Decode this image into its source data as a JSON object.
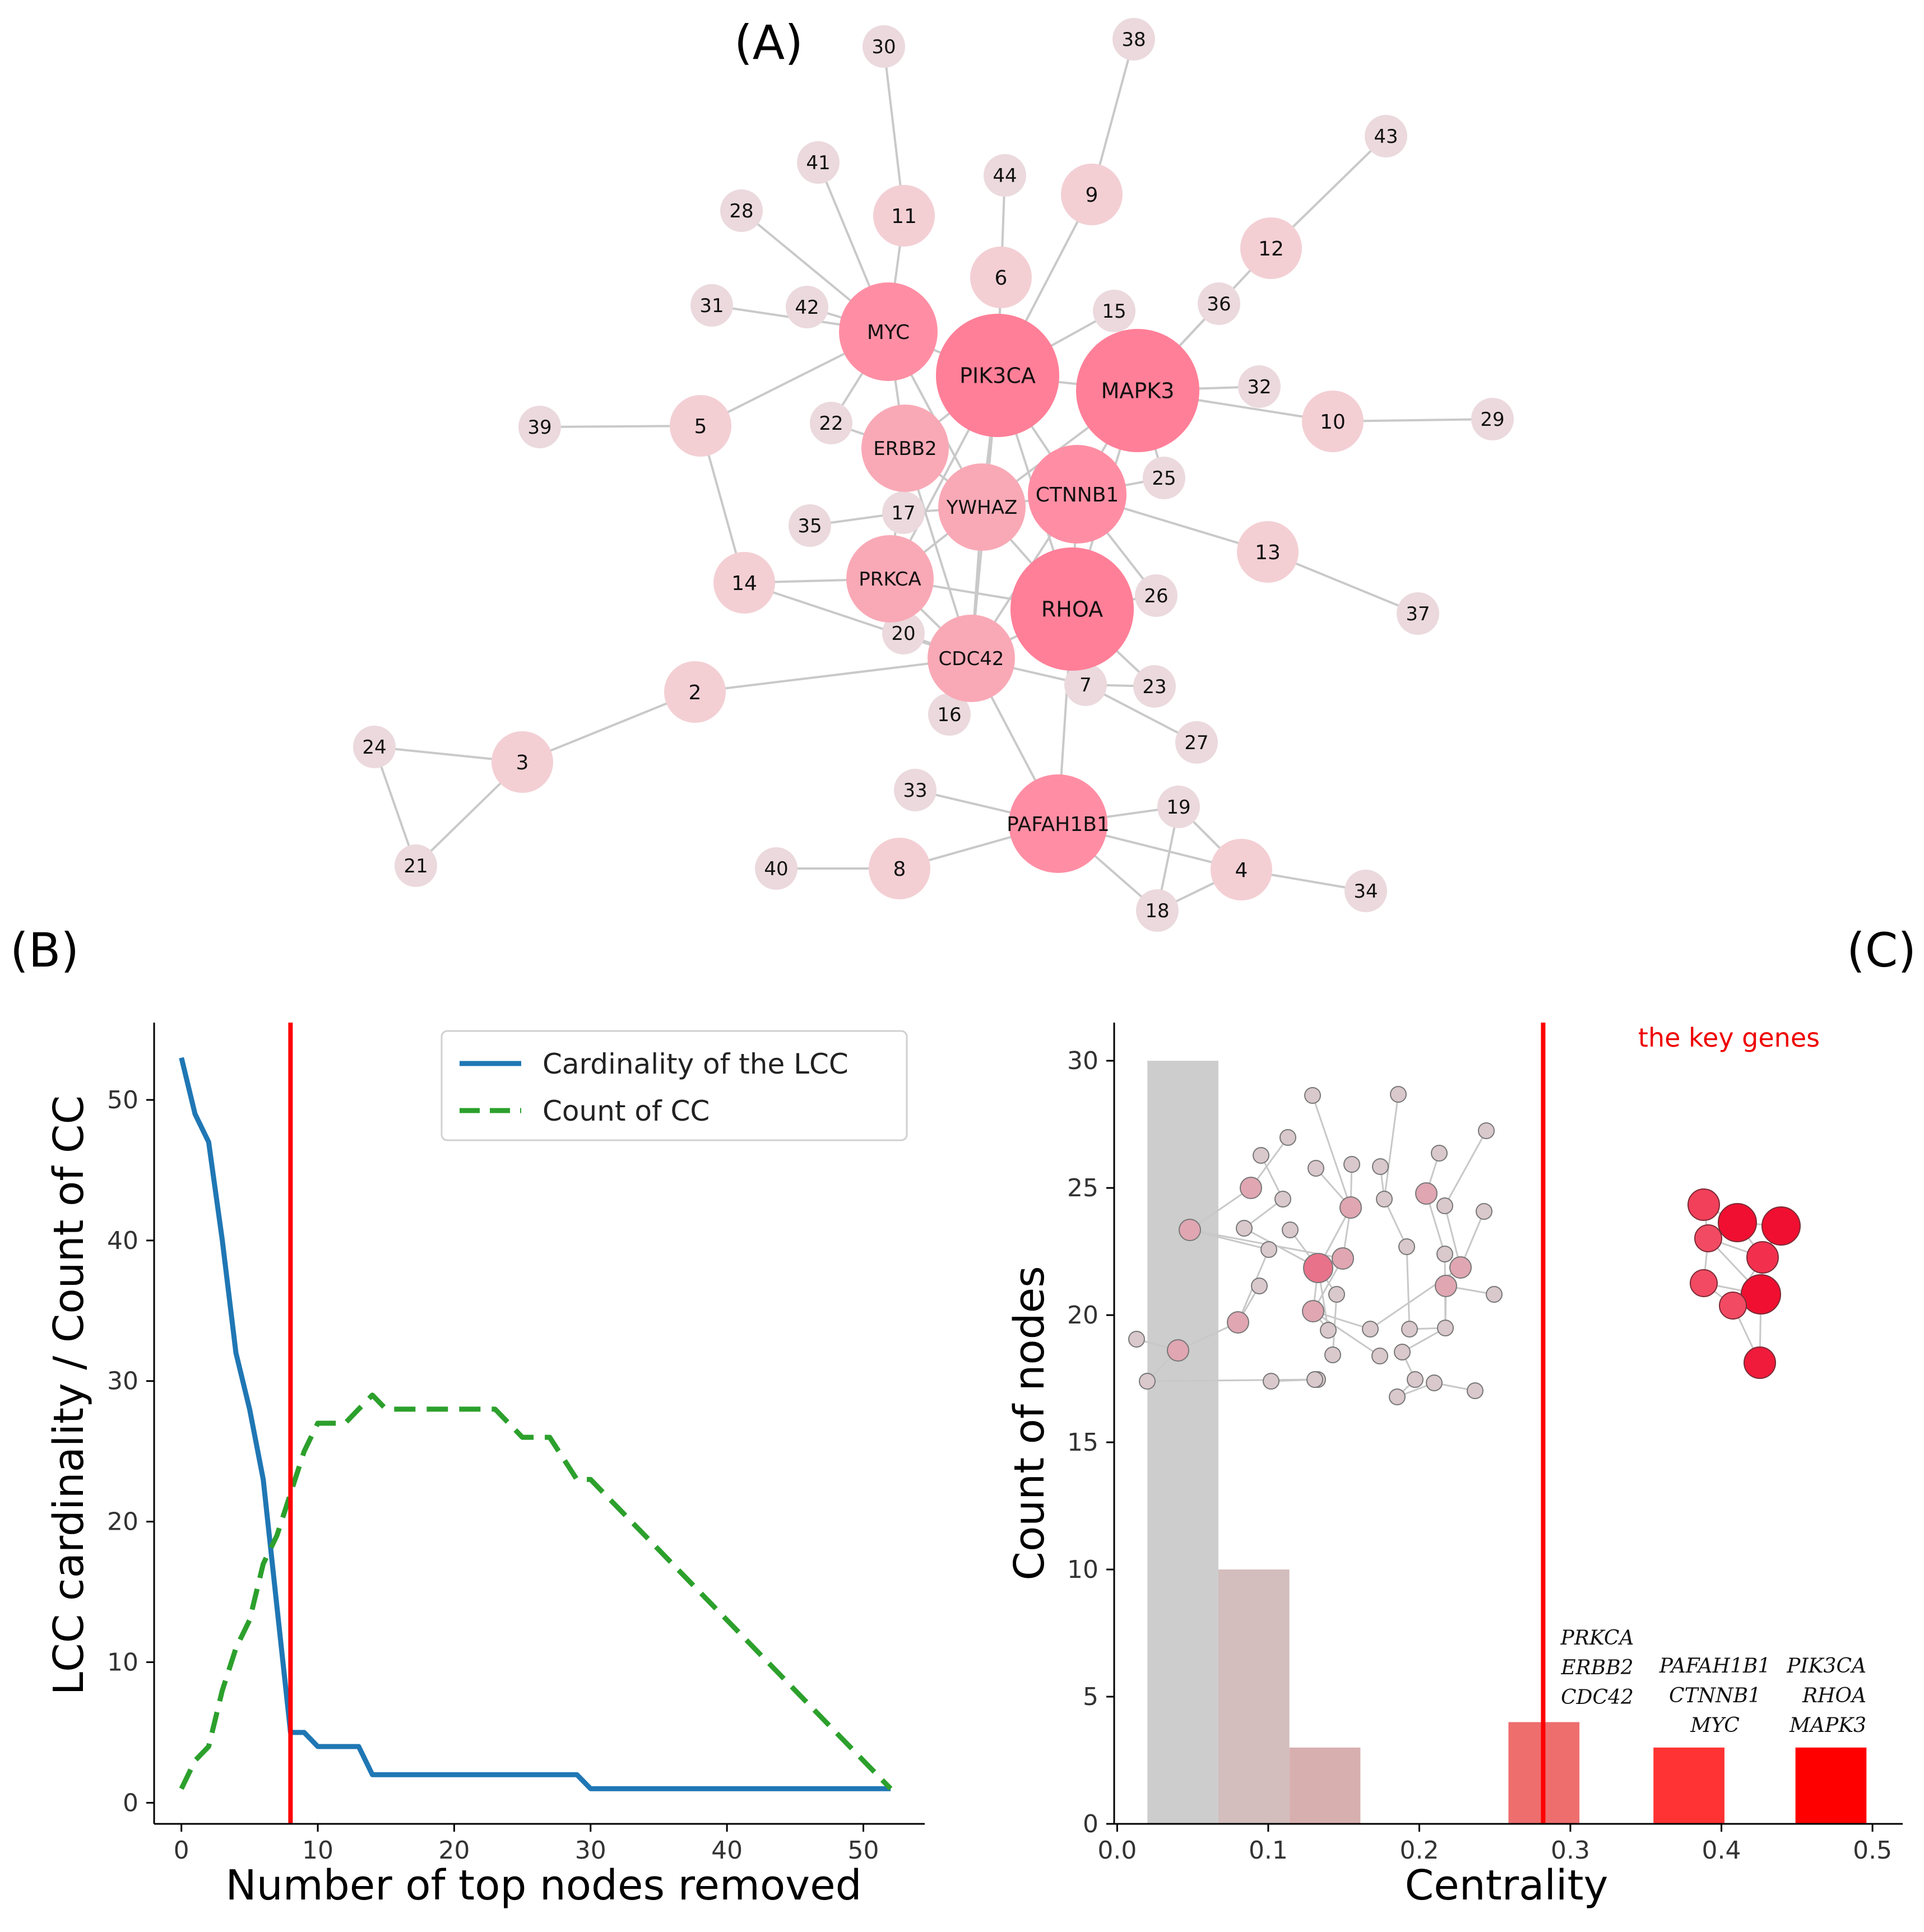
{
  "labels": {
    "panel_a": "(A)",
    "panel_b": "(B)",
    "panel_c": "(C)"
  },
  "chart_data": [
    {
      "type": "network",
      "panel": "A",
      "nodes": [
        {
          "id": "PIK3CA",
          "tier": "hub"
        },
        {
          "id": "MAPK3",
          "tier": "hub"
        },
        {
          "id": "RHOA",
          "tier": "hub"
        },
        {
          "id": "PAFAH1B1",
          "tier": "major"
        },
        {
          "id": "CTNNB1",
          "tier": "major"
        },
        {
          "id": "MYC",
          "tier": "major"
        },
        {
          "id": "ERBB2",
          "tier": "mid"
        },
        {
          "id": "YWHAZ",
          "tier": "mid"
        },
        {
          "id": "PRKCA",
          "tier": "mid"
        },
        {
          "id": "CDC42",
          "tier": "mid"
        },
        {
          "id": "2",
          "tier": "minor"
        },
        {
          "id": "3",
          "tier": "minor"
        },
        {
          "id": "4",
          "tier": "minor"
        },
        {
          "id": "5",
          "tier": "minor"
        },
        {
          "id": "6",
          "tier": "minor"
        },
        {
          "id": "8",
          "tier": "minor"
        },
        {
          "id": "9",
          "tier": "minor"
        },
        {
          "id": "10",
          "tier": "minor"
        },
        {
          "id": "11",
          "tier": "minor"
        },
        {
          "id": "12",
          "tier": "minor"
        },
        {
          "id": "13",
          "tier": "minor"
        },
        {
          "id": "14",
          "tier": "minor"
        },
        {
          "id": "7",
          "tier": "leaf"
        },
        {
          "id": "15",
          "tier": "leaf"
        },
        {
          "id": "16",
          "tier": "leaf"
        },
        {
          "id": "17",
          "tier": "leaf"
        },
        {
          "id": "18",
          "tier": "leaf"
        },
        {
          "id": "19",
          "tier": "leaf"
        },
        {
          "id": "20",
          "tier": "leaf"
        },
        {
          "id": "21",
          "tier": "leaf"
        },
        {
          "id": "22",
          "tier": "leaf"
        },
        {
          "id": "23",
          "tier": "leaf"
        },
        {
          "id": "24",
          "tier": "leaf"
        },
        {
          "id": "25",
          "tier": "leaf"
        },
        {
          "id": "26",
          "tier": "leaf"
        },
        {
          "id": "27",
          "tier": "leaf"
        },
        {
          "id": "28",
          "tier": "leaf"
        },
        {
          "id": "29",
          "tier": "leaf"
        },
        {
          "id": "30",
          "tier": "leaf"
        },
        {
          "id": "31",
          "tier": "leaf"
        },
        {
          "id": "32",
          "tier": "leaf"
        },
        {
          "id": "33",
          "tier": "leaf"
        },
        {
          "id": "34",
          "tier": "leaf"
        },
        {
          "id": "35",
          "tier": "leaf"
        },
        {
          "id": "36",
          "tier": "leaf"
        },
        {
          "id": "37",
          "tier": "leaf"
        },
        {
          "id": "38",
          "tier": "leaf"
        },
        {
          "id": "39",
          "tier": "leaf"
        },
        {
          "id": "40",
          "tier": "leaf"
        },
        {
          "id": "41",
          "tier": "leaf"
        },
        {
          "id": "42",
          "tier": "leaf"
        },
        {
          "id": "43",
          "tier": "leaf"
        },
        {
          "id": "44",
          "tier": "leaf"
        }
      ],
      "edges": [
        [
          "30",
          "11"
        ],
        [
          "11",
          "MYC"
        ],
        [
          "41",
          "MYC"
        ],
        [
          "28",
          "MYC"
        ],
        [
          "31",
          "MYC"
        ],
        [
          "42",
          "MYC"
        ],
        [
          "MYC",
          "ERBB2"
        ],
        [
          "MYC",
          "PIK3CA"
        ],
        [
          "MYC",
          "5"
        ],
        [
          "MYC",
          "YWHAZ"
        ],
        [
          "MYC",
          "22"
        ],
        [
          "22",
          "ERBB2"
        ],
        [
          "44",
          "PIK3CA"
        ],
        [
          "6",
          "PIK3CA"
        ],
        [
          "9",
          "PIK3CA"
        ],
        [
          "38",
          "9"
        ],
        [
          "15",
          "PIK3CA"
        ],
        [
          "PIK3CA",
          "MAPK3"
        ],
        [
          "PIK3CA",
          "ERBB2"
        ],
        [
          "PIK3CA",
          "YWHAZ"
        ],
        [
          "PIK3CA",
          "CTNNB1"
        ],
        [
          "PIK3CA",
          "RHOA"
        ],
        [
          "PIK3CA",
          "CDC42"
        ],
        [
          "PIK3CA",
          "PRKCA"
        ],
        [
          "43",
          "12"
        ],
        [
          "12",
          "MAPK3"
        ],
        [
          "36",
          "MAPK3"
        ],
        [
          "32",
          "MAPK3"
        ],
        [
          "MAPK3",
          "10"
        ],
        [
          "10",
          "29"
        ],
        [
          "MAPK3",
          "CTNNB1"
        ],
        [
          "MAPK3",
          "YWHAZ"
        ],
        [
          "MAPK3",
          "25"
        ],
        [
          "MAPK3",
          "RHOA"
        ],
        [
          "39",
          "5"
        ],
        [
          "5",
          "14"
        ],
        [
          "14",
          "PRKCA"
        ],
        [
          "14",
          "CDC42"
        ],
        [
          "ERBB2",
          "YWHAZ"
        ],
        [
          "ERBB2",
          "17"
        ],
        [
          "ERBB2",
          "CDC42"
        ],
        [
          "ERBB2",
          "PRKCA"
        ],
        [
          "35",
          "17"
        ],
        [
          "17",
          "YWHAZ"
        ],
        [
          "YWHAZ",
          "CTNNB1"
        ],
        [
          "YWHAZ",
          "RHOA"
        ],
        [
          "YWHAZ",
          "CDC42"
        ],
        [
          "YWHAZ",
          "PRKCA"
        ],
        [
          "CTNNB1",
          "RHOA"
        ],
        [
          "CTNNB1",
          "13"
        ],
        [
          "13",
          "37"
        ],
        [
          "CTNNB1",
          "26"
        ],
        [
          "CTNNB1",
          "25"
        ],
        [
          "CTNNB1",
          "CDC42"
        ],
        [
          "PRKCA",
          "20"
        ],
        [
          "PRKCA",
          "CDC42"
        ],
        [
          "PRKCA",
          "RHOA"
        ],
        [
          "20",
          "CDC42"
        ],
        [
          "CDC42",
          "RHOA"
        ],
        [
          "CDC42",
          "16"
        ],
        [
          "CDC42",
          "7"
        ],
        [
          "CDC42",
          "PAFAH1B1"
        ],
        [
          "RHOA",
          "7"
        ],
        [
          "RHOA",
          "26"
        ],
        [
          "RHOA",
          "23"
        ],
        [
          "RHOA",
          "PAFAH1B1"
        ],
        [
          "7",
          "23"
        ],
        [
          "7",
          "27"
        ],
        [
          "2",
          "CDC42"
        ],
        [
          "2",
          "3"
        ],
        [
          "3",
          "24"
        ],
        [
          "3",
          "21"
        ],
        [
          "24",
          "21"
        ],
        [
          "33",
          "PAFAH1B1"
        ],
        [
          "PAFAH1B1",
          "19"
        ],
        [
          "PAFAH1B1",
          "4"
        ],
        [
          "PAFAH1B1",
          "18"
        ],
        [
          "PAFAH1B1",
          "8"
        ],
        [
          "8",
          "40"
        ],
        [
          "19",
          "18"
        ],
        [
          "19",
          "4"
        ],
        [
          "4",
          "18"
        ],
        [
          "4",
          "34"
        ]
      ]
    },
    {
      "type": "line",
      "panel": "B",
      "xlabel": "Number of top nodes removed",
      "ylabel": "LCC cardinality / Count of CC",
      "xlim": [
        -2,
        54.5
      ],
      "ylim": [
        -1.5,
        55.5
      ],
      "xticks": [
        0,
        10,
        20,
        30,
        40,
        50
      ],
      "yticks": [
        0,
        10,
        20,
        30,
        40,
        50
      ],
      "vline_x": 8,
      "vline_color": "#ff0000",
      "legend_loc": "upper-right",
      "series": [
        {
          "name": "Cardinality of the LCC",
          "style": "solid",
          "color": "#1f77b4",
          "x": [
            0,
            1,
            2,
            3,
            4,
            5,
            6,
            7,
            8,
            9,
            10,
            11,
            12,
            13,
            14,
            15,
            20,
            25,
            29,
            30,
            35,
            40,
            45,
            50,
            52
          ],
          "y": [
            53,
            49,
            47,
            40,
            32,
            28,
            23,
            14,
            5,
            5,
            4,
            4,
            4,
            4,
            2,
            2,
            2,
            2,
            2,
            1,
            1,
            1,
            1,
            1,
            1
          ]
        },
        {
          "name": "Count of CC",
          "style": "dashed",
          "color": "#2ca02c",
          "x": [
            0,
            1,
            2,
            3,
            4,
            5,
            6,
            7,
            8,
            9,
            10,
            11,
            12,
            13,
            14,
            15,
            20,
            23,
            25,
            26,
            27,
            29,
            30,
            35,
            40,
            45,
            50,
            52
          ],
          "y": [
            1,
            3,
            4,
            8,
            11,
            13,
            17,
            19,
            22,
            25,
            27,
            27,
            27,
            28,
            29,
            28,
            28,
            28,
            26,
            26,
            26,
            23,
            23,
            18,
            13,
            8,
            3,
            1
          ]
        }
      ]
    },
    {
      "type": "histogram",
      "panel": "C",
      "xlabel": "Centrality",
      "ylabel": "Count of nodes",
      "xlim": [
        -0.002,
        0.52
      ],
      "ylim": [
        0,
        31.5
      ],
      "xticks": [
        "0.0",
        "0.1",
        "0.2",
        "0.3",
        "0.4",
        "0.5"
      ],
      "yticks": [
        0,
        5,
        10,
        15,
        20,
        25,
        30
      ],
      "vline_x": 0.282,
      "vline_color": "#ff0000",
      "vline_label": "the key genes",
      "bins": [
        {
          "start": 0.02,
          "end": 0.067,
          "count": 30,
          "color": "#cdcdcd",
          "genes": []
        },
        {
          "start": 0.067,
          "end": 0.114,
          "count": 10,
          "color": "#d3bdbd",
          "genes": []
        },
        {
          "start": 0.114,
          "end": 0.161,
          "count": 3,
          "color": "#d8afaf",
          "genes": []
        },
        {
          "start": 0.161,
          "end": 0.208,
          "count": 0,
          "color": "#e39090",
          "genes": []
        },
        {
          "start": 0.208,
          "end": 0.259,
          "count": 0,
          "color": "#e88080",
          "genes": []
        },
        {
          "start": 0.259,
          "end": 0.306,
          "count": 4,
          "color": "#ee6e6e",
          "genes": [
            "PRKCA",
            "ERBB2",
            "CDC42"
          ]
        },
        {
          "start": 0.306,
          "end": 0.355,
          "count": 0,
          "color": "#f25050",
          "genes": []
        },
        {
          "start": 0.355,
          "end": 0.402,
          "count": 3,
          "color": "#ff3333",
          "genes": [
            "PAFAH1B1",
            "CTNNB1",
            "MYC"
          ]
        },
        {
          "start": 0.402,
          "end": 0.449,
          "count": 0,
          "color": "#ff2020",
          "genes": []
        },
        {
          "start": 0.449,
          "end": 0.496,
          "count": 3,
          "color": "#ff0000",
          "genes": [
            "PIK3CA",
            "RHOA",
            "MAPK3"
          ]
        }
      ]
    }
  ]
}
